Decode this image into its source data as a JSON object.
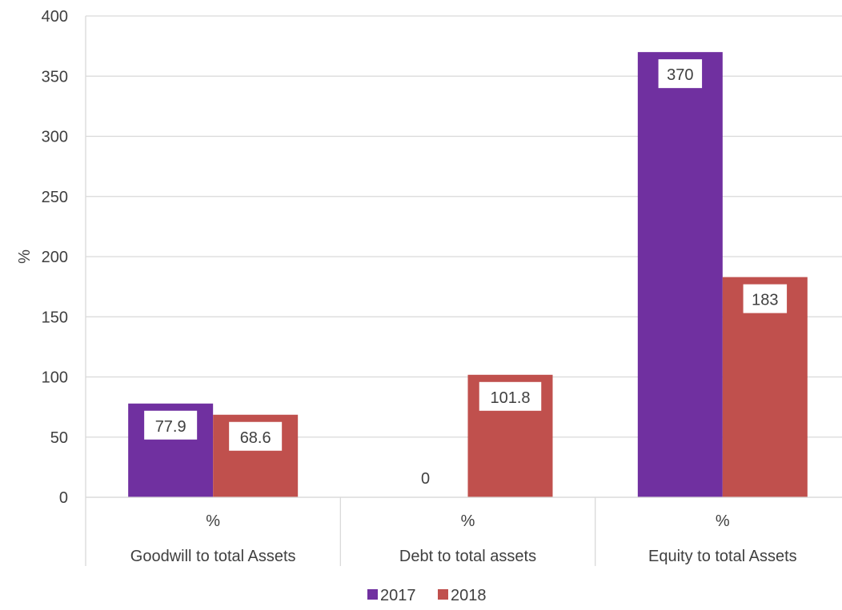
{
  "chart_data": {
    "type": "bar",
    "ylabel": "%",
    "ylim": [
      0,
      400
    ],
    "yticks": [
      0,
      50,
      100,
      150,
      200,
      250,
      300,
      350,
      400
    ],
    "grid": true,
    "legend_position": "bottom",
    "categories": [
      {
        "unit": "%",
        "label": "Goodwill to total Assets"
      },
      {
        "unit": "%",
        "label": "Debt to total assets"
      },
      {
        "unit": "%",
        "label": "Equity to total Assets"
      }
    ],
    "series": [
      {
        "name": "2017",
        "color": "#7030a0",
        "values": [
          77.9,
          0,
          370
        ],
        "labels": [
          "77.9",
          "0",
          "370"
        ]
      },
      {
        "name": "2018",
        "color": "#c0504d",
        "values": [
          68.6,
          101.8,
          183
        ],
        "labels": [
          "68.6",
          "101.8",
          "183"
        ]
      }
    ]
  }
}
